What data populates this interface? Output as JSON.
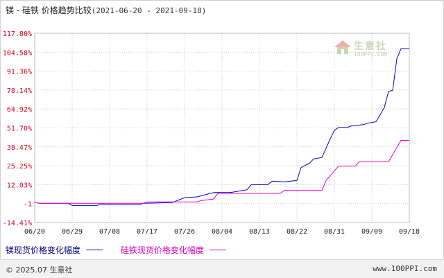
{
  "header": {
    "title": "镁 - 硅铁 价格趋势比较",
    "date_range": "(2021-06-20 - 2021-09-18)"
  },
  "watermark": {
    "brand": "生意社",
    "url": "100PPI.COM"
  },
  "footer": {
    "copyright": "© 2025.07 生意社",
    "site": "www.100PPI.com"
  },
  "colors": {
    "series1": "#0000cc",
    "series2": "#e000c0",
    "ytick": "#d0021b"
  },
  "chart_data": {
    "type": "line",
    "title": "镁 - 硅铁 价格趋势比较",
    "xlabel": "",
    "ylabel": "",
    "x_start": "2021-06-20",
    "x_end": "2021-09-18",
    "x_ticks": [
      "06/20",
      "06/29",
      "07/08",
      "07/17",
      "07/26",
      "08/04",
      "08/13",
      "08/22",
      "08/31",
      "09/09",
      "09/18"
    ],
    "y_ticks": [
      "117.80%",
      "104.58%",
      "91.36%",
      "78.14%",
      "64.92%",
      "51.70%",
      "38.47%",
      "25.25%",
      "12.03%",
      "-1",
      "-14.41%"
    ],
    "ylim": [
      -14.41,
      117.8
    ],
    "grid": true,
    "legend_position": "bottom",
    "series": [
      {
        "name": "镁现货价格变化幅度",
        "color": "#0000cc",
        "points": [
          [
            "2021-06-20",
            0
          ],
          [
            "2021-06-21",
            -1
          ],
          [
            "2021-06-28",
            -1
          ],
          [
            "2021-06-29",
            -2.5
          ],
          [
            "2021-07-05",
            -2.5
          ],
          [
            "2021-07-06",
            -1.5
          ],
          [
            "2021-07-08",
            -2
          ],
          [
            "2021-07-15",
            -2
          ],
          [
            "2021-07-16",
            -1
          ],
          [
            "2021-07-23",
            -0.5
          ],
          [
            "2021-07-26",
            3
          ],
          [
            "2021-07-29",
            3.5
          ],
          [
            "2021-08-02",
            6.5
          ],
          [
            "2021-08-06",
            6.5
          ],
          [
            "2021-08-08",
            7.5
          ],
          [
            "2021-08-10",
            8.5
          ],
          [
            "2021-08-11",
            12
          ],
          [
            "2021-08-15",
            12
          ],
          [
            "2021-08-16",
            14.5
          ],
          [
            "2021-08-19",
            14
          ],
          [
            "2021-08-22",
            15
          ],
          [
            "2021-08-23",
            24
          ],
          [
            "2021-08-25",
            27
          ],
          [
            "2021-08-26",
            30
          ],
          [
            "2021-08-28",
            31
          ],
          [
            "2021-08-30",
            44
          ],
          [
            "2021-08-31",
            50
          ],
          [
            "2021-09-01",
            52
          ],
          [
            "2021-09-03",
            52
          ],
          [
            "2021-09-04",
            53
          ],
          [
            "2021-09-07",
            54
          ],
          [
            "2021-09-08",
            55
          ],
          [
            "2021-09-10",
            56
          ],
          [
            "2021-09-12",
            66
          ],
          [
            "2021-09-13",
            77
          ],
          [
            "2021-09-14",
            78
          ],
          [
            "2021-09-15",
            100
          ],
          [
            "2021-09-16",
            107
          ],
          [
            "2021-09-18",
            107
          ]
        ]
      },
      {
        "name": "硅铁现货价格变化幅度",
        "color": "#e000c0",
        "points": [
          [
            "2021-06-20",
            0
          ],
          [
            "2021-06-21",
            -1
          ],
          [
            "2021-07-16",
            -1
          ],
          [
            "2021-07-17",
            0
          ],
          [
            "2021-07-29",
            0
          ],
          [
            "2021-07-30",
            1
          ],
          [
            "2021-08-02",
            2
          ],
          [
            "2021-08-03",
            6
          ],
          [
            "2021-08-18",
            6
          ],
          [
            "2021-08-19",
            8
          ],
          [
            "2021-08-28",
            8
          ],
          [
            "2021-08-29",
            15
          ],
          [
            "2021-09-01",
            25
          ],
          [
            "2021-09-05",
            25
          ],
          [
            "2021-09-06",
            28
          ],
          [
            "2021-09-13",
            28
          ],
          [
            "2021-09-14",
            33
          ],
          [
            "2021-09-16",
            43
          ],
          [
            "2021-09-18",
            43
          ]
        ]
      }
    ]
  }
}
